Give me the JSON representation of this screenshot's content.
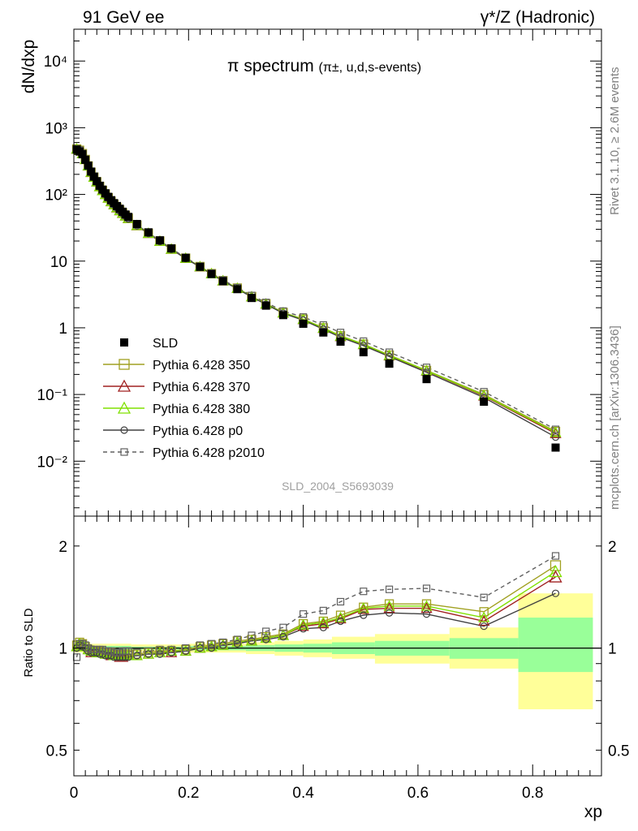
{
  "header": {
    "left": "91 GeV ee",
    "right": "γ*/Z (Hadronic)",
    "side_top": "Rivet 3.1.10, ≥ 2.6M events",
    "side_bottom": "mcplots.cern.ch [arXiv:1306.3436]"
  },
  "chart_data": [
    {
      "type": "scatter",
      "title_main": "π spectrum",
      "title_sub": "(π±, u,d,s-events)",
      "ylabel": "dN/dxp",
      "xlabel": "",
      "ylog": true,
      "ylim": [
        0.0015,
        30000
      ],
      "xlim": [
        0,
        0.92
      ],
      "y_ticks": [
        {
          "value": 0.01,
          "label": "10⁻²"
        },
        {
          "value": 0.1,
          "label": "10⁻¹"
        },
        {
          "value": 1,
          "label": "1"
        },
        {
          "value": 10,
          "label": "10"
        },
        {
          "value": 100,
          "label": "10²"
        },
        {
          "value": 1000,
          "label": "10³"
        },
        {
          "value": 10000,
          "label": "10⁴"
        }
      ],
      "watermark": "SLD_2004_S5693039",
      "legend_position": "bottom-left",
      "x": [
        0.005,
        0.01,
        0.015,
        0.02,
        0.025,
        0.03,
        0.035,
        0.04,
        0.045,
        0.05,
        0.055,
        0.06,
        0.065,
        0.07,
        0.075,
        0.08,
        0.085,
        0.09,
        0.095,
        0.11,
        0.13,
        0.15,
        0.17,
        0.195,
        0.22,
        0.24,
        0.26,
        0.285,
        0.31,
        0.335,
        0.365,
        0.4,
        0.435,
        0.465,
        0.505,
        0.55,
        0.615,
        0.715,
        0.84
      ],
      "series": [
        {
          "name": "SLD",
          "color": "#000000",
          "marker": "square-filled",
          "values": [
            470,
            440,
            400,
            330,
            270,
            220,
            185,
            158,
            135,
            118,
            104,
            92,
            82,
            74,
            67,
            61,
            55,
            50,
            46,
            36,
            27,
            20.5,
            15.5,
            11.2,
            8.2,
            6.4,
            5.0,
            3.8,
            2.8,
            2.15,
            1.55,
            1.15,
            0.85,
            0.62,
            0.43,
            0.29,
            0.17,
            0.078,
            0.016
          ]
        },
        {
          "name": "Pythia 6.428 350",
          "color": "#a0a020",
          "marker": "square-open",
          "values": [
            480,
            460,
            410,
            335,
            268,
            215,
            182,
            155,
            132,
            115,
            101,
            89,
            79,
            71,
            64,
            58,
            53,
            48,
            44,
            34.5,
            26.2,
            20,
            15.2,
            11.1,
            8.3,
            6.5,
            5.1,
            3.95,
            2.95,
            2.3,
            1.7,
            1.35,
            1.0,
            0.76,
            0.57,
            0.39,
            0.23,
            0.1,
            0.028
          ]
        },
        {
          "name": "Pythia 6.428 370",
          "color": "#a02020",
          "marker": "triangle-open",
          "values": [
            478,
            458,
            408,
            334,
            267,
            214,
            181,
            154,
            131,
            114,
            100,
            88,
            78,
            70,
            63,
            57,
            52,
            47.5,
            43.5,
            34,
            26,
            19.8,
            15.1,
            11.0,
            8.2,
            6.45,
            5.05,
            3.9,
            2.92,
            2.27,
            1.67,
            1.33,
            0.98,
            0.74,
            0.56,
            0.38,
            0.225,
            0.095,
            0.026
          ]
        },
        {
          "name": "Pythia 6.428 380",
          "color": "#80e000",
          "marker": "triangle-open",
          "values": [
            479,
            459,
            409,
            334,
            268,
            215,
            181,
            155,
            131,
            114,
            100,
            88.5,
            78.5,
            70.5,
            63.5,
            57.5,
            52.5,
            47.7,
            43.7,
            34.2,
            26.1,
            19.9,
            15.15,
            11.05,
            8.25,
            6.47,
            5.07,
            3.92,
            2.93,
            2.28,
            1.68,
            1.34,
            0.99,
            0.75,
            0.565,
            0.385,
            0.228,
            0.097,
            0.027
          ]
        },
        {
          "name": "Pythia 6.428 p0",
          "color": "#404040",
          "marker": "circle-open",
          "values": [
            476,
            455,
            405,
            332,
            265,
            213,
            180,
            153,
            130,
            113,
            99,
            87.5,
            77.5,
            69.5,
            62.5,
            56.5,
            51.5,
            47,
            43,
            33.8,
            25.9,
            19.7,
            15.0,
            10.95,
            8.15,
            6.4,
            5.0,
            3.85,
            2.88,
            2.25,
            1.65,
            1.3,
            0.95,
            0.72,
            0.54,
            0.37,
            0.215,
            0.09,
            0.023
          ]
        },
        {
          "name": "Pythia 6.428 p2010",
          "color": "#606060",
          "marker": "square-open-small",
          "dashed": true,
          "values": [
            482,
            462,
            412,
            338,
            270,
            218,
            184,
            157,
            134,
            117,
            102,
            90,
            80,
            72,
            65,
            59,
            54,
            49,
            45,
            35,
            26.6,
            20.3,
            15.4,
            11.3,
            8.4,
            6.6,
            5.2,
            4.0,
            3.05,
            2.4,
            1.78,
            1.45,
            1.1,
            0.85,
            0.63,
            0.43,
            0.255,
            0.11,
            0.03
          ]
        }
      ]
    },
    {
      "type": "line",
      "ylabel": "Ratio to SLD",
      "xlabel": "xp",
      "ylog": true,
      "ylim": [
        0.42,
        2.45
      ],
      "xlim": [
        0,
        0.92
      ],
      "y_ticks": [
        {
          "value": 0.5,
          "label": "0.5"
        },
        {
          "value": 1,
          "label": "1"
        },
        {
          "value": 2,
          "label": "2"
        }
      ],
      "x_ticks": [
        {
          "value": 0,
          "label": "0"
        },
        {
          "value": 0.2,
          "label": "0.2"
        },
        {
          "value": 0.4,
          "label": "0.4"
        },
        {
          "value": 0.6,
          "label": "0.6"
        },
        {
          "value": 0.8,
          "label": "0.8"
        }
      ],
      "x": [
        0.005,
        0.01,
        0.015,
        0.02,
        0.025,
        0.03,
        0.035,
        0.04,
        0.045,
        0.05,
        0.055,
        0.06,
        0.065,
        0.07,
        0.075,
        0.08,
        0.085,
        0.09,
        0.095,
        0.11,
        0.13,
        0.15,
        0.17,
        0.195,
        0.22,
        0.24,
        0.26,
        0.285,
        0.31,
        0.335,
        0.365,
        0.4,
        0.435,
        0.465,
        0.505,
        0.55,
        0.615,
        0.715,
        0.84
      ],
      "bands": [
        {
          "x0": 0.0,
          "x1": 0.1,
          "yellow": [
            0.97,
            1.03
          ],
          "green": [
            0.985,
            1.015
          ]
        },
        {
          "x0": 0.1,
          "x1": 0.2,
          "yellow": [
            0.975,
            1.025
          ],
          "green": [
            0.99,
            1.01
          ]
        },
        {
          "x0": 0.2,
          "x1": 0.3,
          "yellow": [
            0.97,
            1.03
          ],
          "green": [
            0.985,
            1.015
          ]
        },
        {
          "x0": 0.3,
          "x1": 0.35,
          "yellow": [
            0.96,
            1.04
          ],
          "green": [
            0.98,
            1.02
          ]
        },
        {
          "x0": 0.35,
          "x1": 0.4,
          "yellow": [
            0.95,
            1.05
          ],
          "green": [
            0.975,
            1.025
          ]
        },
        {
          "x0": 0.4,
          "x1": 0.45,
          "yellow": [
            0.94,
            1.06
          ],
          "green": [
            0.97,
            1.03
          ]
        },
        {
          "x0": 0.45,
          "x1": 0.525,
          "yellow": [
            0.93,
            1.08
          ],
          "green": [
            0.96,
            1.04
          ]
        },
        {
          "x0": 0.525,
          "x1": 0.655,
          "yellow": [
            0.9,
            1.1
          ],
          "green": [
            0.95,
            1.05
          ]
        },
        {
          "x0": 0.655,
          "x1": 0.775,
          "yellow": [
            0.87,
            1.15
          ],
          "green": [
            0.93,
            1.07
          ]
        },
        {
          "x0": 0.775,
          "x1": 0.905,
          "yellow": [
            0.66,
            1.45
          ],
          "green": [
            0.85,
            1.23
          ]
        }
      ],
      "series": [
        {
          "name": "Pythia 6.428 350",
          "color": "#a0a020",
          "marker": "square-open",
          "values": [
            1.02,
            1.04,
            1.03,
            1.01,
            0.99,
            0.98,
            0.98,
            0.98,
            0.98,
            0.97,
            0.97,
            0.97,
            0.97,
            0.96,
            0.96,
            0.96,
            0.96,
            0.96,
            0.96,
            0.96,
            0.97,
            0.98,
            0.98,
            0.99,
            1.01,
            1.02,
            1.03,
            1.05,
            1.06,
            1.08,
            1.1,
            1.18,
            1.2,
            1.25,
            1.32,
            1.35,
            1.35,
            1.28,
            1.75
          ]
        },
        {
          "name": "Pythia 6.428 370",
          "color": "#a02020",
          "marker": "triangle-open",
          "values": [
            1.01,
            1.03,
            1.02,
            1.01,
            0.99,
            0.97,
            0.98,
            0.97,
            0.97,
            0.97,
            0.96,
            0.96,
            0.95,
            0.95,
            0.95,
            0.94,
            0.94,
            0.95,
            0.95,
            0.95,
            0.96,
            0.97,
            0.97,
            0.98,
            1.0,
            1.01,
            1.02,
            1.04,
            1.05,
            1.07,
            1.09,
            1.16,
            1.18,
            1.22,
            1.3,
            1.31,
            1.31,
            1.2,
            1.62
          ]
        },
        {
          "name": "Pythia 6.428 380",
          "color": "#80e000",
          "marker": "triangle-open",
          "values": [
            1.01,
            1.03,
            1.02,
            1.01,
            0.99,
            0.98,
            0.98,
            0.97,
            0.97,
            0.97,
            0.96,
            0.96,
            0.96,
            0.95,
            0.95,
            0.95,
            0.95,
            0.95,
            0.95,
            0.95,
            0.96,
            0.97,
            0.98,
            0.98,
            1.0,
            1.01,
            1.02,
            1.04,
            1.05,
            1.07,
            1.09,
            1.17,
            1.19,
            1.23,
            1.31,
            1.33,
            1.33,
            1.23,
            1.68
          ]
        },
        {
          "name": "Pythia 6.428 p0",
          "color": "#404040",
          "marker": "circle-open",
          "values": [
            1.0,
            1.02,
            1.01,
            1.0,
            0.98,
            0.97,
            0.97,
            0.97,
            0.96,
            0.96,
            0.95,
            0.95,
            0.95,
            0.94,
            0.94,
            0.94,
            0.94,
            0.94,
            0.94,
            0.95,
            0.96,
            0.96,
            0.97,
            0.98,
            1.0,
            1.0,
            1.02,
            1.03,
            1.05,
            1.06,
            1.08,
            1.14,
            1.15,
            1.2,
            1.25,
            1.27,
            1.26,
            1.16,
            1.45
          ]
        },
        {
          "name": "Pythia 6.428 p2010",
          "color": "#606060",
          "marker": "square-open-small",
          "dashed": true,
          "values": [
            0.94,
            1.03,
            1.03,
            1.02,
            1.0,
            0.99,
            0.99,
            0.99,
            0.99,
            0.99,
            0.98,
            0.98,
            0.98,
            0.97,
            0.97,
            0.97,
            0.98,
            0.98,
            0.98,
            0.97,
            0.98,
            0.99,
            0.99,
            1.0,
            1.02,
            1.03,
            1.04,
            1.06,
            1.09,
            1.12,
            1.15,
            1.26,
            1.29,
            1.37,
            1.47,
            1.49,
            1.5,
            1.41,
            1.87
          ]
        }
      ]
    }
  ]
}
